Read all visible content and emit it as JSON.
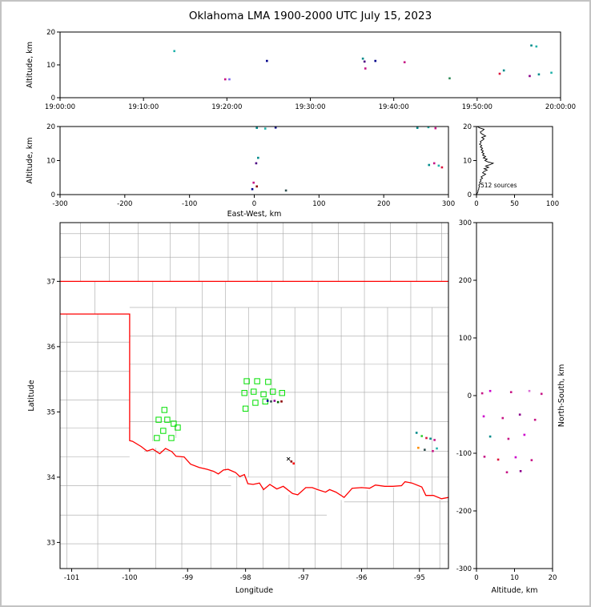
{
  "title": "Oklahoma LMA 1900-2000 UTC July 15, 2023",
  "colors": {
    "state_border": "#ff0000",
    "county_line": "#a6a6a6",
    "station": "#00e000",
    "axis": "#000000",
    "histogram_line": "#000000"
  },
  "chart_data": [
    {
      "id": "time-altitude",
      "type": "scatter",
      "xlabel": "",
      "ylabel": "Altitude, km",
      "xlim": [
        0,
        60
      ],
      "ylim": [
        0,
        20
      ],
      "xticks": [
        {
          "v": 0,
          "label": "19:00:00"
        },
        {
          "v": 10,
          "label": "19:10:00"
        },
        {
          "v": 20,
          "label": "19:20:00"
        },
        {
          "v": 30,
          "label": "19:30:00"
        },
        {
          "v": 40,
          "label": "19:40:00"
        },
        {
          "v": 50,
          "label": "19:50:00"
        },
        {
          "v": 60,
          "label": "20:00:00"
        }
      ],
      "yticks": [
        0,
        10,
        20
      ],
      "points": [
        [
          13.7,
          14.2,
          "#20b2aa"
        ],
        [
          19.8,
          5.6,
          "#c71585"
        ],
        [
          20.3,
          5.6,
          "#7b68ee"
        ],
        [
          24.8,
          11.2,
          "#00008b"
        ],
        [
          36.3,
          11.9,
          "#008b8b"
        ],
        [
          36.5,
          11.0,
          "#4b0082"
        ],
        [
          36.6,
          8.9,
          "#c71585"
        ],
        [
          37.8,
          11.2,
          "#00008b"
        ],
        [
          41.3,
          10.8,
          "#c71585"
        ],
        [
          46.7,
          5.9,
          "#2e8b57"
        ],
        [
          52.7,
          7.3,
          "#dc143c"
        ],
        [
          53.2,
          8.3,
          "#008b8b"
        ],
        [
          56.3,
          6.6,
          "#8b008b"
        ],
        [
          56.5,
          15.9,
          "#008b8b"
        ],
        [
          57.1,
          15.6,
          "#20b2aa"
        ],
        [
          57.4,
          7.1,
          "#008b8b"
        ],
        [
          58.9,
          7.6,
          "#20b2aa"
        ]
      ]
    },
    {
      "id": "ew-altitude",
      "type": "scatter",
      "xlabel": "East-West, km",
      "ylabel": "Altitude, km",
      "xlim": [
        -300,
        300
      ],
      "ylim": [
        0,
        20
      ],
      "xticks": [
        -300,
        -200,
        -100,
        0,
        100,
        200,
        300
      ],
      "yticks": [
        0,
        10,
        20
      ],
      "points": [
        [
          4,
          19.6,
          "#008b8b"
        ],
        [
          17,
          19.4,
          "#20b2aa"
        ],
        [
          33,
          19.7,
          "#00008b"
        ],
        [
          6,
          10.8,
          "#008b8b"
        ],
        [
          3,
          9.2,
          "#4b0082"
        ],
        [
          -1,
          3.5,
          "#c71585"
        ],
        [
          4,
          2.4,
          "#8b0000"
        ],
        [
          -3,
          1.6,
          "#00008b"
        ],
        [
          49,
          1.2,
          "#2f4f4f"
        ],
        [
          252,
          19.6,
          "#008b8b"
        ],
        [
          269,
          19.8,
          "#20b2aa"
        ],
        [
          280,
          19.5,
          "#c71585"
        ],
        [
          270,
          8.7,
          "#008b8b"
        ],
        [
          278,
          9.2,
          "#c71585"
        ],
        [
          285,
          8.5,
          "#20b2aa"
        ],
        [
          290,
          8.0,
          "#dc143c"
        ]
      ]
    },
    {
      "id": "altitude-histogram",
      "type": "line",
      "annotation": "512 sources",
      "xlabel": "",
      "ylabel": "",
      "xlim": [
        0,
        100
      ],
      "ylim": [
        0,
        20
      ],
      "xticks": [
        0,
        50,
        100
      ],
      "yticks": [
        0,
        10,
        20
      ],
      "profile": {
        "alt_step": 0.4,
        "counts": [
          0,
          1,
          2,
          2,
          3,
          3,
          4,
          3,
          5,
          4,
          6,
          5,
          8,
          6,
          9,
          12,
          8,
          10,
          14,
          10,
          16,
          12,
          18,
          22,
          15,
          11,
          14,
          9,
          12,
          8,
          10,
          7,
          9,
          6,
          8,
          5,
          7,
          4,
          6,
          5,
          8,
          10,
          7,
          12,
          9,
          6,
          5,
          8,
          10,
          4,
          1
        ]
      }
    },
    {
      "id": "map",
      "type": "scatter",
      "xlabel": "Longitude",
      "ylabel": "Latitude",
      "xlim": [
        -101.2,
        -94.5
      ],
      "ylim": [
        32.6,
        37.9
      ],
      "xticks": [
        -101,
        -100,
        -99,
        -98,
        -97,
        -96,
        -95
      ],
      "yticks": [
        33,
        34,
        35,
        36,
        37
      ],
      "state_border": [
        [
          [
            -101.2,
            37
          ],
          [
            -94.5,
            37
          ]
        ],
        [
          [
            -101.2,
            36.5
          ],
          [
            -100,
            36.5
          ],
          [
            -100,
            34.56
          ],
          [
            -99.95,
            34.55
          ],
          [
            -99.8,
            34.47
          ],
          [
            -99.7,
            34.4
          ],
          [
            -99.6,
            34.43
          ],
          [
            -99.48,
            34.36
          ],
          [
            -99.38,
            34.44
          ],
          [
            -99.27,
            34.39
          ],
          [
            -99.2,
            34.32
          ],
          [
            -99.06,
            34.31
          ],
          [
            -98.95,
            34.2
          ],
          [
            -98.8,
            34.15
          ],
          [
            -98.66,
            34.12
          ],
          [
            -98.55,
            34.09
          ],
          [
            -98.47,
            34.05
          ],
          [
            -98.38,
            34.11
          ],
          [
            -98.3,
            34.12
          ],
          [
            -98.17,
            34.07
          ],
          [
            -98.1,
            34.01
          ],
          [
            -98.02,
            34.04
          ],
          [
            -97.96,
            33.9
          ],
          [
            -97.87,
            33.89
          ],
          [
            -97.76,
            33.91
          ],
          [
            -97.69,
            33.81
          ],
          [
            -97.58,
            33.89
          ],
          [
            -97.46,
            33.82
          ],
          [
            -97.35,
            33.86
          ],
          [
            -97.19,
            33.75
          ],
          [
            -97.1,
            33.73
          ],
          [
            -96.96,
            33.84
          ],
          [
            -96.85,
            33.84
          ],
          [
            -96.76,
            33.81
          ],
          [
            -96.62,
            33.77
          ],
          [
            -96.55,
            33.81
          ],
          [
            -96.44,
            33.77
          ],
          [
            -96.3,
            33.69
          ],
          [
            -96.16,
            33.83
          ],
          [
            -96.0,
            33.84
          ],
          [
            -95.86,
            33.83
          ],
          [
            -95.76,
            33.88
          ],
          [
            -95.6,
            33.86
          ],
          [
            -95.46,
            33.86
          ],
          [
            -95.31,
            33.87
          ],
          [
            -95.25,
            33.93
          ],
          [
            -95.13,
            33.91
          ],
          [
            -94.96,
            33.85
          ],
          [
            -94.89,
            33.72
          ],
          [
            -94.76,
            33.72
          ],
          [
            -94.62,
            33.67
          ],
          [
            -94.5,
            33.69
          ]
        ]
      ],
      "county_v": [
        [
          -100.85,
          37,
          37.9
        ],
        [
          -100.35,
          37,
          37.9
        ],
        [
          -99.85,
          37,
          37.9
        ],
        [
          -99.3,
          37,
          37.9
        ],
        [
          -98.8,
          37,
          37.9
        ],
        [
          -98.3,
          37,
          37.9
        ],
        [
          -97.8,
          37,
          37.9
        ],
        [
          -97.35,
          37,
          37.9
        ],
        [
          -96.85,
          37,
          37.9
        ],
        [
          -96.4,
          37,
          37.9
        ],
        [
          -95.95,
          37,
          37.9
        ],
        [
          -95.5,
          37,
          37.9
        ],
        [
          -95.05,
          37,
          37.9
        ],
        [
          -94.62,
          37,
          37.9
        ],
        [
          -100.6,
          36.5,
          37
        ],
        [
          -100.55,
          32.6,
          36.5
        ],
        [
          -101.08,
          32.6,
          36.5
        ],
        [
          -99.6,
          34.55,
          37
        ],
        [
          -99.2,
          34.6,
          36.6
        ],
        [
          -98.75,
          34.2,
          37
        ],
        [
          -98.35,
          34.1,
          37
        ],
        [
          -97.95,
          34.0,
          36.6
        ],
        [
          -97.55,
          33.9,
          37
        ],
        [
          -97.15,
          33.78,
          36.6
        ],
        [
          -96.75,
          33.82,
          37
        ],
        [
          -96.35,
          33.72,
          36.6
        ],
        [
          -95.95,
          33.86,
          37
        ],
        [
          -95.55,
          33.88,
          36.6
        ],
        [
          -95.15,
          33.9,
          37
        ],
        [
          -94.78,
          33.72,
          36.6
        ],
        [
          -99.55,
          32.6,
          34.45
        ],
        [
          -99.1,
          32.6,
          34.3
        ],
        [
          -98.6,
          32.6,
          34.1
        ],
        [
          -98.15,
          32.6,
          34.02
        ],
        [
          -97.7,
          32.6,
          33.85
        ],
        [
          -97.25,
          32.6,
          33.73
        ],
        [
          -96.8,
          32.6,
          33.8
        ],
        [
          -96.35,
          32.6,
          33.65
        ],
        [
          -95.9,
          32.6,
          33.8
        ],
        [
          -95.45,
          32.6,
          33.84
        ],
        [
          -95.0,
          32.6,
          33.82
        ],
        [
          -94.65,
          32.6,
          33.66
        ]
      ],
      "county_h": [
        [
          37.37,
          -101.2,
          -94.5
        ],
        [
          37.73,
          -101.2,
          -94.5
        ],
        [
          36.6,
          -100,
          -94.5
        ],
        [
          36.16,
          -100,
          -94.5
        ],
        [
          35.73,
          -100,
          -94.5
        ],
        [
          35.3,
          -100,
          -94.5
        ],
        [
          34.85,
          -100,
          -94.5
        ],
        [
          34.4,
          -99.75,
          -94.5
        ],
        [
          34.0,
          -98.3,
          -94.5
        ],
        [
          36.07,
          -101.2,
          -100
        ],
        [
          35.62,
          -101.2,
          -100
        ],
        [
          35.18,
          -101.2,
          -100
        ],
        [
          34.75,
          -101.2,
          -100
        ],
        [
          34.31,
          -101.2,
          -100
        ],
        [
          33.87,
          -101.2,
          -98.25
        ],
        [
          33.42,
          -101.2,
          -96.6
        ],
        [
          32.98,
          -101.2,
          -94.5
        ],
        [
          33.62,
          -96.3,
          -94.5
        ]
      ],
      "stations": [
        [
          -97.98,
          35.47
        ],
        [
          -97.8,
          35.47
        ],
        [
          -97.61,
          35.46
        ],
        [
          -98.02,
          35.29
        ],
        [
          -97.86,
          35.31
        ],
        [
          -97.69,
          35.27
        ],
        [
          -97.53,
          35.31
        ],
        [
          -97.37,
          35.29
        ],
        [
          -98.0,
          35.05
        ],
        [
          -97.83,
          35.14
        ],
        [
          -97.66,
          35.16
        ],
        [
          -99.4,
          35.03
        ],
        [
          -99.5,
          34.88
        ],
        [
          -99.35,
          34.88
        ],
        [
          -99.24,
          34.82
        ],
        [
          -99.42,
          34.71
        ],
        [
          -99.53,
          34.6
        ],
        [
          -99.28,
          34.6
        ],
        [
          -99.17,
          34.76
        ]
      ],
      "points": [
        [
          -97.62,
          35.17,
          "#00008b"
        ],
        [
          -97.56,
          35.16,
          "#2f4f4f"
        ],
        [
          -97.5,
          35.17,
          "#8b008b"
        ],
        [
          -97.44,
          35.15,
          "#006400"
        ],
        [
          -97.38,
          35.16,
          "#8b0000"
        ],
        [
          -97.26,
          34.28,
          "#000000",
          "x"
        ],
        [
          -97.21,
          34.24,
          "#8b0000"
        ],
        [
          -97.17,
          34.21,
          "#ff0000"
        ],
        [
          -95.05,
          34.68,
          "#008b8b"
        ],
        [
          -94.96,
          34.63,
          "#32cd32"
        ],
        [
          -94.88,
          34.6,
          "#dc143c"
        ],
        [
          -94.81,
          34.59,
          "#008b8b"
        ],
        [
          -94.74,
          34.57,
          "#c71585"
        ],
        [
          -95.02,
          34.45,
          "#ff8c00"
        ],
        [
          -94.91,
          34.42,
          "#2f4f4f"
        ],
        [
          -94.77,
          34.4,
          "#c71585"
        ],
        [
          -94.7,
          34.44,
          "#20b2aa"
        ]
      ]
    },
    {
      "id": "ns-altitude",
      "type": "scatter",
      "xlabel": "Altitude, km",
      "ylabel": "North-South, km",
      "xlim": [
        0,
        20
      ],
      "ylim": [
        -300,
        300
      ],
      "xticks": [
        0,
        10,
        20
      ],
      "yticks": [
        -300,
        -200,
        -100,
        0,
        100,
        200,
        300
      ],
      "points": [
        [
          1.5,
          4,
          "#c71585"
        ],
        [
          3.6,
          8,
          "#cc00cc"
        ],
        [
          9.1,
          6,
          "#c71585"
        ],
        [
          13.9,
          8,
          "#da70d6"
        ],
        [
          17.1,
          3,
          "#c71585"
        ],
        [
          1.9,
          -36,
          "#cc00cc"
        ],
        [
          6.9,
          -39,
          "#c71585"
        ],
        [
          11.4,
          -33,
          "#8b008b"
        ],
        [
          15.4,
          -42,
          "#c71585"
        ],
        [
          3.6,
          -71,
          "#008b8b"
        ],
        [
          8.4,
          -75,
          "#c71585"
        ],
        [
          12.6,
          -68,
          "#cc00cc"
        ],
        [
          2.1,
          -106,
          "#c71585"
        ],
        [
          5.7,
          -111,
          "#dc143c"
        ],
        [
          10.3,
          -107,
          "#cc00cc"
        ],
        [
          14.5,
          -112,
          "#c71585"
        ],
        [
          8.0,
          -133,
          "#c71585"
        ],
        [
          11.6,
          -131,
          "#8b008b"
        ]
      ]
    }
  ]
}
